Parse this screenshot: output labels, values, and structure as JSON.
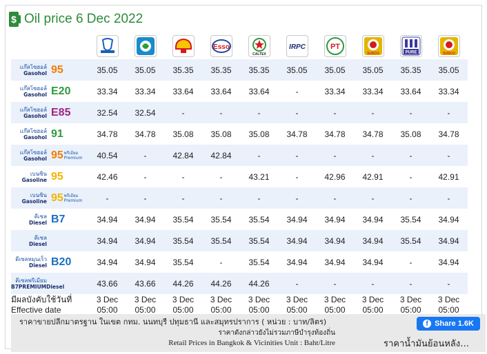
{
  "page": {
    "title": "Oil price 6 Dec 2022",
    "title_color": "#2e8b3a"
  },
  "brands": [
    {
      "name": "PTT",
      "icon": "ptt-logo-icon",
      "color": "#1c5fb8"
    },
    {
      "name": "Bangchak",
      "icon": "bangchak-logo-icon",
      "color": "#1a8cc9"
    },
    {
      "name": "Shell",
      "icon": "shell-logo-icon",
      "color": "#f7c600"
    },
    {
      "name": "Esso",
      "icon": "esso-logo-icon",
      "color": "#d71920"
    },
    {
      "name": "Caltex",
      "icon": "caltex-logo-icon",
      "color": "#d71920",
      "text": "CALTEX"
    },
    {
      "name": "IRPC",
      "icon": "irpc-logo-icon",
      "color": "#1c2e6e",
      "text": "IRPC"
    },
    {
      "name": "PT",
      "icon": "pt-logo-icon",
      "color": "#2e9b3f",
      "text": "PT"
    },
    {
      "name": "Susco",
      "icon": "susco-logo-icon",
      "color": "#e2b600",
      "text": "SUSCO"
    },
    {
      "name": "Pure",
      "icon": "pure-logo-icon",
      "color": "#3a3a9c",
      "text": "PURE"
    },
    {
      "name": "Susco Dealers",
      "icon": "susco-dealers-logo-icon",
      "color": "#e2b600",
      "text": "SUSCO"
    }
  ],
  "fuels": [
    {
      "thai": "แก๊สโซฮอล์",
      "en": "Gasohol",
      "grade": "95",
      "grade_color": "#f57c00",
      "premium": "",
      "prices": [
        "35.05",
        "35.05",
        "35.35",
        "35.35",
        "35.35",
        "35.05",
        "35.05",
        "35.05",
        "35.35",
        "35.05"
      ]
    },
    {
      "thai": "แก๊สโซฮอล์",
      "en": "Gasohol",
      "grade": "E20",
      "grade_color": "#2e9b3f",
      "premium": "",
      "prices": [
        "33.34",
        "33.34",
        "33.64",
        "33.64",
        "33.64",
        "-",
        "33.34",
        "33.34",
        "33.64",
        "33.34"
      ]
    },
    {
      "thai": "แก๊สโซฮอล์",
      "en": "Gasohol",
      "grade": "E85",
      "grade_color": "#a0237f",
      "premium": "",
      "prices": [
        "32.54",
        "32.54",
        "-",
        "-",
        "-",
        "-",
        "-",
        "-",
        "-",
        "-"
      ]
    },
    {
      "thai": "แก๊สโซฮอล์",
      "en": "Gasohol",
      "grade": "91",
      "grade_color": "#2e9b3f",
      "premium": "",
      "prices": [
        "34.78",
        "34.78",
        "35.08",
        "35.08",
        "35.08",
        "34.78",
        "34.78",
        "34.78",
        "35.08",
        "34.78"
      ]
    },
    {
      "thai": "แก๊สโซฮอล์",
      "en": "Gasohol",
      "grade": "95",
      "grade_color": "#f57c00",
      "premium": "พรีเมียม Premium",
      "prices": [
        "40.54",
        "-",
        "42.84",
        "42.84",
        "-",
        "-",
        "-",
        "-",
        "-",
        "-"
      ]
    },
    {
      "thai": "เบนซิน",
      "en": "Gasoline",
      "grade": "95",
      "grade_color": "#f5b400",
      "premium": "",
      "prices": [
        "42.46",
        "-",
        "-",
        "-",
        "43.21",
        "-",
        "42.96",
        "42.91",
        "-",
        "42.91"
      ]
    },
    {
      "thai": "เบนซิน",
      "en": "Gasoline",
      "grade": "95",
      "grade_color": "#f5b400",
      "premium": "พรีเมียม Premium",
      "prices": [
        "-",
        "-",
        "-",
        "-",
        "-",
        "-",
        "-",
        "-",
        "-",
        "-"
      ]
    },
    {
      "thai": "ดีเซล",
      "en": "Diesel",
      "grade": "B7",
      "grade_color": "#1a6fc2",
      "premium": "",
      "prices": [
        "34.94",
        "34.94",
        "35.54",
        "35.54",
        "35.54",
        "34.94",
        "34.94",
        "34.94",
        "35.54",
        "34.94"
      ]
    },
    {
      "thai": "ดีเซล",
      "en": "Diesel",
      "grade": "",
      "grade_color": "#1a6fc2",
      "premium": "",
      "prices": [
        "34.94",
        "34.94",
        "35.54",
        "35.54",
        "35.54",
        "34.94",
        "34.94",
        "34.94",
        "35.54",
        "34.94"
      ]
    },
    {
      "thai": "ดีเซลหมุนเร็ว",
      "en": "Diesel",
      "grade": "B20",
      "grade_color": "#1a6fc2",
      "premium": "",
      "prices": [
        "34.94",
        "34.94",
        "35.54",
        "-",
        "35.54",
        "34.94",
        "34.94",
        "34.94",
        "-",
        "34.94"
      ]
    },
    {
      "thai": "ดีเซลพรีเมียม",
      "en": "B7PREMIUMDiesel",
      "grade": "",
      "grade_color": "#1a6fc2",
      "premium": "",
      "prices": [
        "43.66",
        "43.66",
        "44.26",
        "44.26",
        "44.26",
        "-",
        "-",
        "-",
        "-",
        "-"
      ]
    }
  ],
  "effective": {
    "thai_label": "มีผลบังคับใช้วันที่",
    "en_label": "Effective date",
    "dates": [
      "3 Dec",
      "3 Dec",
      "3 Dec",
      "3 Dec",
      "3 Dec",
      "3 Dec",
      "3 Dec",
      "3 Dec",
      "3 Dec",
      "3 Dec"
    ],
    "times": [
      "05:00",
      "05:00",
      "05:00",
      "05:00",
      "05:00",
      "05:00",
      "05:00",
      "05:00",
      "05:00",
      "05:00"
    ]
  },
  "footer": {
    "note_thai": "ราคาขายปลีกมาตรฐาน ในเขต กทม. นนทบุรี ปทุมธานี และสมุทรปราการ ( หน่วย : บาท/ลิตร)",
    "note_tax": "ราคาดังกล่าวยังไม่รวมภาษีบำรุงท้องถิ่น",
    "note_en": "Retail Prices in Bangkok & Vicinities Unit : Baht/Litre",
    "share_label": "Share 1.6K",
    "back_link": "ราคาน้ำมันย้อนหลัง…"
  }
}
